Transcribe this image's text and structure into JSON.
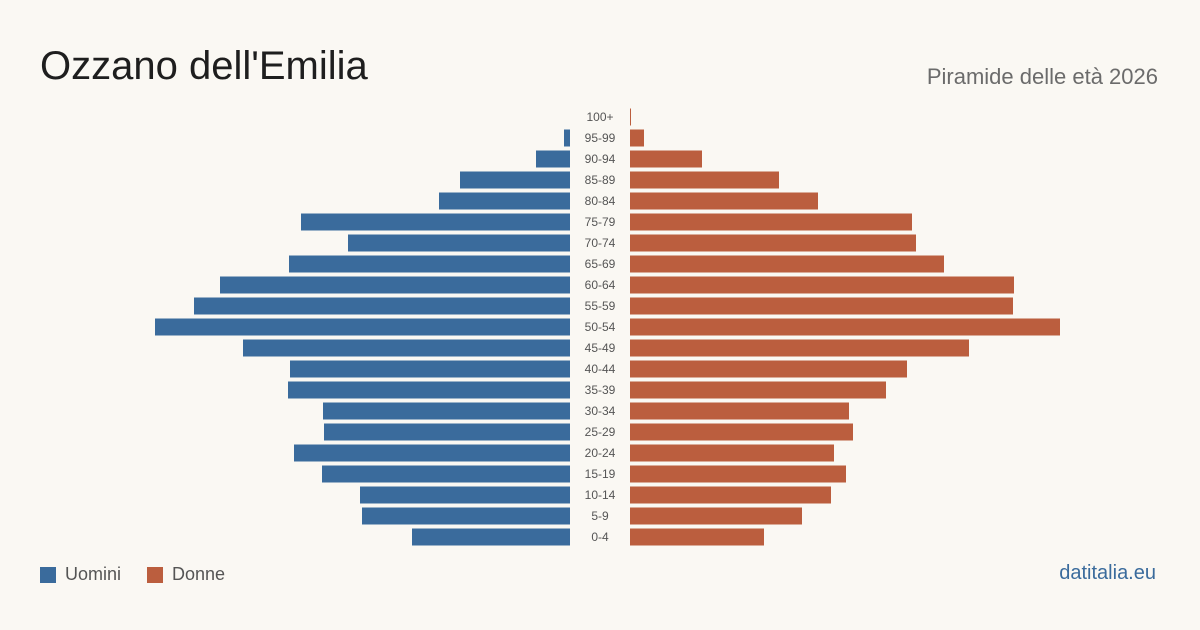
{
  "title": "Ozzano dell'Emilia",
  "subtitle": "Piramide delle età 2026",
  "legend": {
    "men": "Uomini",
    "women": "Donne"
  },
  "brand": "datitalia.eu",
  "colors": {
    "men": "#3a6b9c",
    "women": "#bb5e3e"
  },
  "chart_data": {
    "type": "bar",
    "orientation": "horizontal-population-pyramid",
    "title": "Ozzano dell'Emilia",
    "subtitle": "Piramide delle età 2026",
    "categories": [
      "100+",
      "95-99",
      "90-94",
      "85-89",
      "80-84",
      "75-79",
      "70-74",
      "65-69",
      "60-64",
      "55-59",
      "50-54",
      "45-49",
      "40-44",
      "35-39",
      "30-34",
      "25-29",
      "20-24",
      "15-19",
      "10-14",
      "5-9",
      "0-4"
    ],
    "series": [
      {
        "name": "Uomini",
        "values": [
          0,
          6,
          34,
          110,
          131,
          269,
          222,
          281,
          350,
          376,
          415,
          327,
          280,
          282,
          247,
          246,
          276,
          248,
          210,
          208,
          158
        ]
      },
      {
        "name": "Donne",
        "values": [
          1,
          14,
          72,
          149,
          188,
          282,
          286,
          314,
          384,
          383,
          430,
          339,
          277,
          256,
          219,
          223,
          204,
          216,
          201,
          172,
          134
        ]
      }
    ]
  }
}
